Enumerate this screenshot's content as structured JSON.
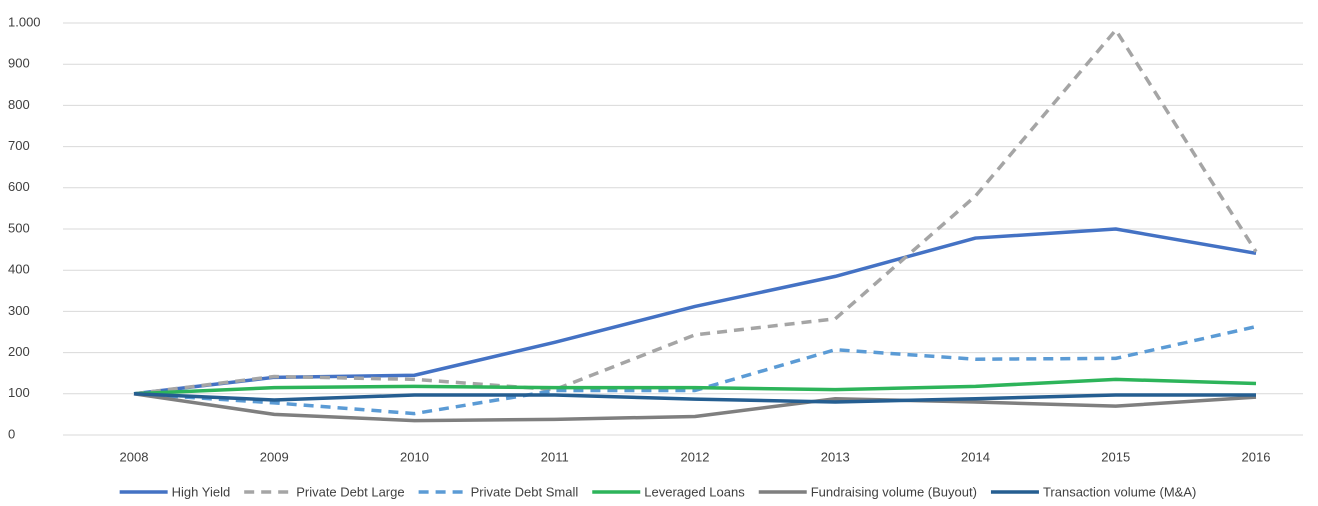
{
  "chart_data": {
    "type": "line",
    "categories": [
      "2008",
      "2009",
      "2010",
      "2011",
      "2012",
      "2013",
      "2014",
      "2015",
      "2016"
    ],
    "series": [
      {
        "name": "High Yield",
        "color": "#4472c4",
        "style": "solid",
        "values": [
          100,
          140,
          145,
          225,
          312,
          385,
          478,
          500,
          441
        ]
      },
      {
        "name": "Private Debt Large",
        "color": "#a5a5a5",
        "style": "dashed",
        "values": [
          100,
          142,
          135,
          110,
          243,
          282,
          580,
          983,
          445
        ]
      },
      {
        "name": "Private Debt Small",
        "color": "#5b9bd5",
        "style": "dashed",
        "values": [
          100,
          78,
          52,
          108,
          108,
          207,
          184,
          186,
          263
        ]
      },
      {
        "name": "Leveraged Loans",
        "color": "#2db45a",
        "style": "solid",
        "values": [
          100,
          115,
          118,
          115,
          115,
          110,
          118,
          135,
          125
        ]
      },
      {
        "name": "Fundraising volume (Buyout)",
        "color": "#7f7f7f",
        "style": "solid",
        "values": [
          100,
          50,
          35,
          38,
          45,
          88,
          80,
          70,
          92
        ]
      },
      {
        "name": "Transaction volume (M&A)",
        "color": "#255e91",
        "style": "solid",
        "values": [
          100,
          85,
          97,
          97,
          87,
          80,
          88,
          97,
          97
        ]
      }
    ],
    "ylim": [
      0,
      1000
    ],
    "yticks": [
      0,
      100,
      200,
      300,
      400,
      500,
      600,
      700,
      800,
      900,
      {
        "value": 1000,
        "label": "1.000"
      }
    ],
    "grid": true,
    "legend": "bottom"
  }
}
